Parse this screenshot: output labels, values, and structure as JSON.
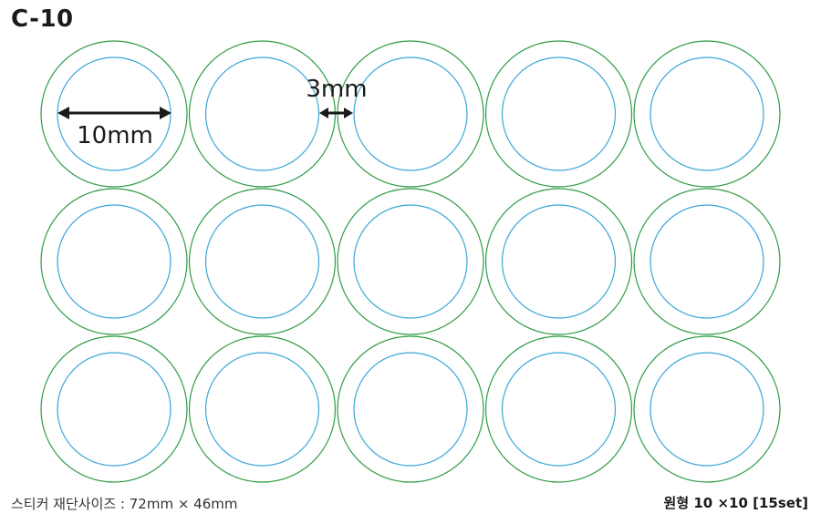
{
  "title": "C-10",
  "footer": {
    "left_label": "스티커 재단사이즈 : 72mm × 46mm",
    "right_label": "원형 10 ×10 [15set]"
  },
  "dimensions": {
    "diameter_label": "10mm",
    "gap_label": "3mm"
  },
  "grid": {
    "rows": 3,
    "columns": 5,
    "count": 15
  },
  "colors": {
    "outer_ring": "#2e9b45",
    "inner_ring": "#3aa6d8",
    "dimension_line": "#1a1a1a"
  }
}
